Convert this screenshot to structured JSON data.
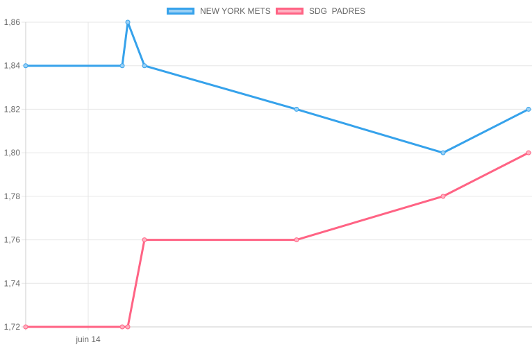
{
  "chart_data": {
    "type": "line",
    "x_tick_labels": [
      "juin 14"
    ],
    "y_ticks": [
      "1,72",
      "1,74",
      "1,76",
      "1,78",
      "1,80",
      "1,82",
      "1,84",
      "1,86"
    ],
    "ylim": [
      1.72,
      1.86
    ],
    "grid": true,
    "legend_position": "top",
    "series": [
      {
        "name": "NEW YORK METS",
        "color": "#36a2eb",
        "fill": "#9ad0f5",
        "values": [
          1.84,
          1.84,
          1.86,
          1.84,
          1.82,
          1.8,
          1.82
        ]
      },
      {
        "name": "SDG  PADRES",
        "color": "#ff6384",
        "fill": "#ffb1c1",
        "values": [
          1.72,
          1.72,
          1.72,
          1.76,
          1.76,
          1.78,
          1.8
        ]
      }
    ]
  }
}
